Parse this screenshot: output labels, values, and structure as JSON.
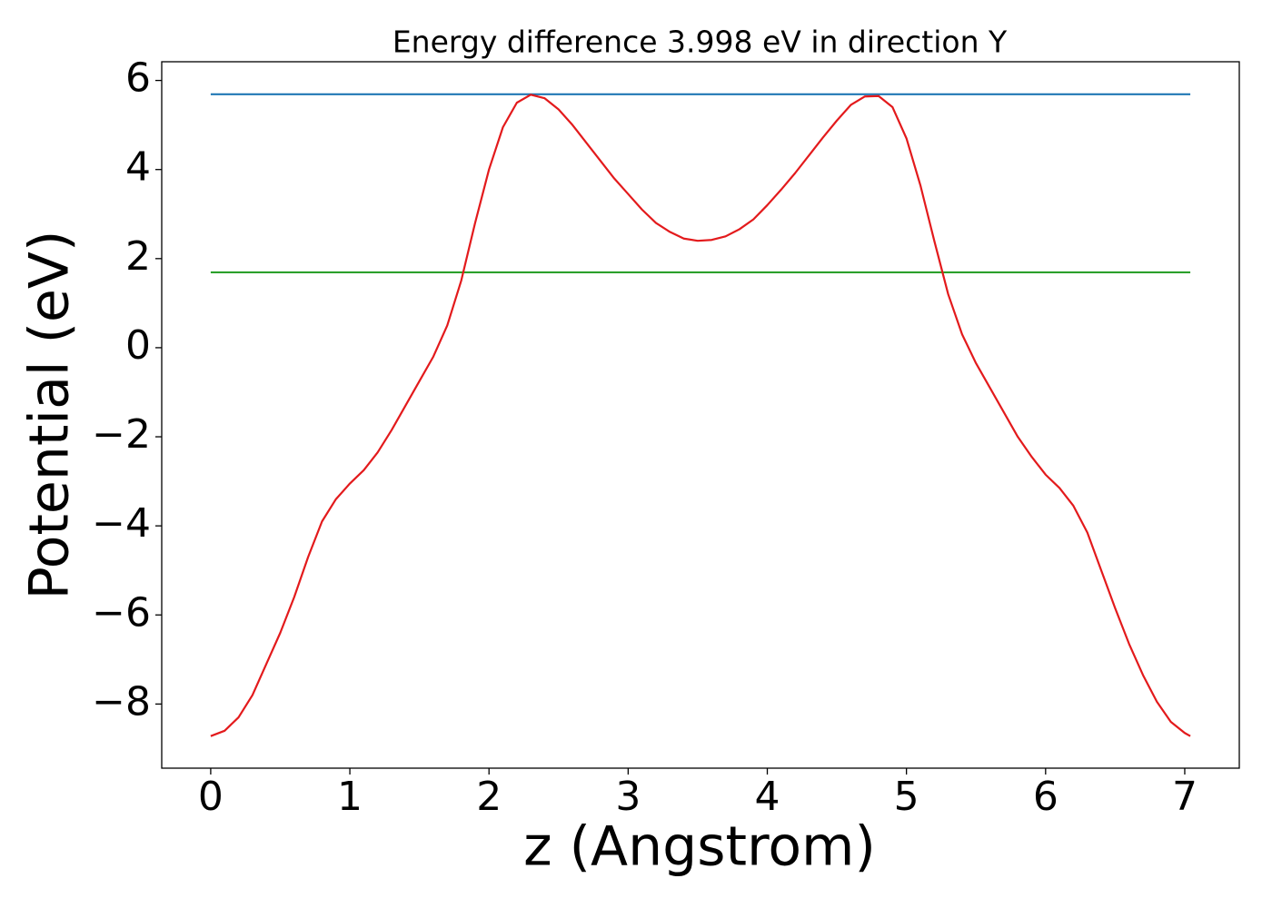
{
  "chart_data": {
    "type": "line",
    "title": "Energy difference 3.998 eV in direction Y",
    "x_label": "z (Angstrom)",
    "y_label": "Potential (eV)",
    "xlim": [
      -0.352,
      7.392
    ],
    "ylim": [
      -9.44,
      6.42
    ],
    "xticks": [
      0,
      1,
      2,
      3,
      4,
      5,
      6,
      7
    ],
    "yticks": [
      {
        "value": -8,
        "label": "−8"
      },
      {
        "value": -6,
        "label": "−6"
      },
      {
        "value": -4,
        "label": "−4"
      },
      {
        "value": -2,
        "label": "−2"
      },
      0,
      2,
      4,
      6
    ],
    "grid": false,
    "series": [
      {
        "color": "#1f77b4",
        "x": [
          0,
          7.04
        ],
        "values": [
          5.69,
          5.69
        ]
      },
      {
        "color": "#2ca02c",
        "x": [
          0,
          7.04
        ],
        "values": [
          1.692,
          1.692
        ]
      },
      {
        "color": "#e31a1c",
        "x": [
          0,
          0.1,
          0.2,
          0.3,
          0.4,
          0.5,
          0.6,
          0.7,
          0.8,
          0.9,
          1.0,
          1.1,
          1.2,
          1.3,
          1.4,
          1.5,
          1.6,
          1.7,
          1.8,
          1.9,
          2.0,
          2.1,
          2.2,
          2.3,
          2.4,
          2.5,
          2.6,
          2.7,
          2.8,
          2.9,
          3.0,
          3.1,
          3.2,
          3.3,
          3.4,
          3.5,
          3.6,
          3.7,
          3.8,
          3.9,
          4.0,
          4.1,
          4.2,
          4.3,
          4.4,
          4.5,
          4.6,
          4.7,
          4.8,
          4.9,
          5.0,
          5.1,
          5.2,
          5.3,
          5.4,
          5.5,
          5.6,
          5.7,
          5.8,
          5.9,
          6.0,
          6.1,
          6.2,
          6.3,
          6.4,
          6.5,
          6.6,
          6.7,
          6.8,
          6.9,
          7.0,
          7.04
        ],
        "values": [
          -8.72,
          -8.6,
          -8.3,
          -7.8,
          -7.1,
          -6.4,
          -5.6,
          -4.7,
          -3.9,
          -3.4,
          -3.05,
          -2.75,
          -2.35,
          -1.85,
          -1.3,
          -0.75,
          -0.2,
          0.5,
          1.5,
          2.8,
          4.0,
          4.95,
          5.5,
          5.68,
          5.6,
          5.35,
          5.0,
          4.6,
          4.2,
          3.8,
          3.45,
          3.1,
          2.8,
          2.6,
          2.45,
          2.4,
          2.42,
          2.5,
          2.66,
          2.88,
          3.2,
          3.55,
          3.92,
          4.32,
          4.72,
          5.1,
          5.45,
          5.64,
          5.65,
          5.4,
          4.7,
          3.65,
          2.4,
          1.2,
          0.3,
          -0.35,
          -0.9,
          -1.45,
          -2.0,
          -2.45,
          -2.85,
          -3.15,
          -3.55,
          -4.15,
          -5.0,
          -5.85,
          -6.65,
          -7.35,
          -7.95,
          -8.4,
          -8.65,
          -8.72
        ]
      }
    ]
  }
}
